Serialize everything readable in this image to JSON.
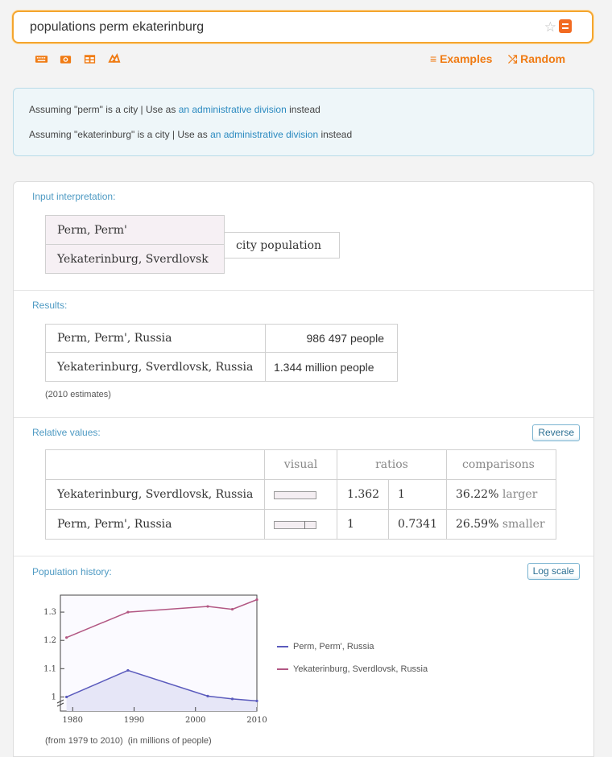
{
  "search": {
    "query": "populations perm ekaterinburg",
    "star_icon": "star-icon",
    "go_icon": "go-icon"
  },
  "toolbar": {
    "icons": [
      "keyboard-icon",
      "camera-icon",
      "table-icon",
      "upload-icon"
    ],
    "examples_label": "Examples",
    "random_label": "Random"
  },
  "assumptions": [
    {
      "prefix": "Assuming \"perm\" is a city | Use as ",
      "link": "an administrative division",
      "suffix": " instead"
    },
    {
      "prefix": "Assuming \"ekaterinburg\" is a city | Use as ",
      "link": "an administrative division",
      "suffix": " instead"
    }
  ],
  "input_pod": {
    "title": "Input interpretation:",
    "cities": [
      "Perm, Perm'",
      "Yekaterinburg, Sverdlovsk"
    ],
    "property": "city population"
  },
  "results_pod": {
    "title": "Results:",
    "rows": [
      {
        "city": "Perm, Perm', Russia",
        "value": "986 497",
        "unit": "people"
      },
      {
        "city": "Yekaterinburg, Sverdlovsk, Russia",
        "value": "1.344 million",
        "unit": "people"
      }
    ],
    "note": "(2010 estimates)"
  },
  "relative_pod": {
    "title": "Relative values:",
    "button": "Reverse",
    "headers": [
      "visual",
      "ratios",
      "comparisons"
    ],
    "rows": [
      {
        "city": "Yekaterinburg, Sverdlovsk, Russia",
        "visual": 1.0,
        "ratio1": "1.362",
        "ratio2": "1",
        "pct": "36.22%",
        "word": "larger"
      },
      {
        "city": "Perm, Perm', Russia",
        "visual": 0.7341,
        "ratio1": "1",
        "ratio2": "0.7341",
        "pct": "26.59%",
        "word": "smaller"
      }
    ]
  },
  "history_pod": {
    "title": "Population history:",
    "button": "Log scale",
    "footnote_range": "(from 1979 to 2010)",
    "footnote_units": "(in millions of people)"
  },
  "chart_data": {
    "type": "line",
    "title": "",
    "xlabel": "",
    "ylabel": "",
    "xlim": [
      1978,
      2010
    ],
    "ylim": [
      0.95,
      1.36
    ],
    "x_ticks": [
      1980,
      1990,
      2000,
      2010
    ],
    "y_ticks": [
      1,
      1.1,
      1.2,
      1.3
    ],
    "y_axis_break": true,
    "grid": false,
    "legend_position": "right",
    "series": [
      {
        "name": "Perm, Perm', Russia",
        "color": "#5b5bbd",
        "x": [
          1979,
          1989,
          2002,
          2006,
          2010
        ],
        "y": [
          1.0,
          1.094,
          1.003,
          0.993,
          0.986
        ]
      },
      {
        "name": "Yekaterinburg, Sverdlovsk, Russia",
        "color": "#b25783",
        "x": [
          1979,
          1989,
          2002,
          2006,
          2010
        ],
        "y": [
          1.21,
          1.3,
          1.32,
          1.31,
          1.344
        ]
      }
    ]
  }
}
